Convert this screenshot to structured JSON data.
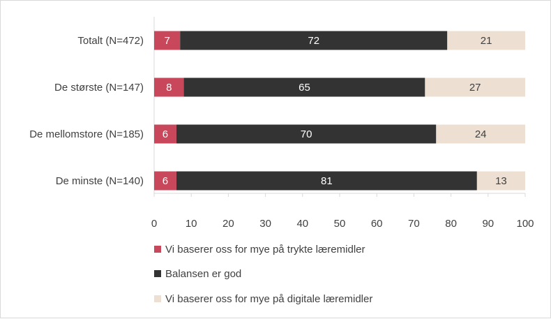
{
  "chart_data": {
    "type": "bar",
    "orientation": "horizontal",
    "stacked": true,
    "title": "",
    "xlabel": "",
    "ylabel": "",
    "categories": [
      "Totalt (N=472)",
      "De største (N=147)",
      "De mellomstore (N=185)",
      "De minste (N=140)"
    ],
    "series": [
      {
        "name": "Vi baserer oss for mye på trykte læremidler",
        "values": [
          7,
          8,
          6,
          6
        ],
        "color": "#c9475b",
        "label_color": "#ffffff"
      },
      {
        "name": "Balansen er god",
        "values": [
          72,
          65,
          70,
          81
        ],
        "color": "#333333",
        "label_color": "#ffffff"
      },
      {
        "name": "Vi baserer oss for mye på digitale læremidler",
        "values": [
          21,
          27,
          24,
          13
        ],
        "color": "#ede0d3",
        "label_color": "#404040"
      }
    ],
    "xlim": [
      0,
      100
    ],
    "xticks": [
      "0",
      "10",
      "20",
      "30",
      "40",
      "50",
      "60",
      "70",
      "80",
      "90",
      "100"
    ],
    "grid": false,
    "legend_position": "bottom"
  }
}
